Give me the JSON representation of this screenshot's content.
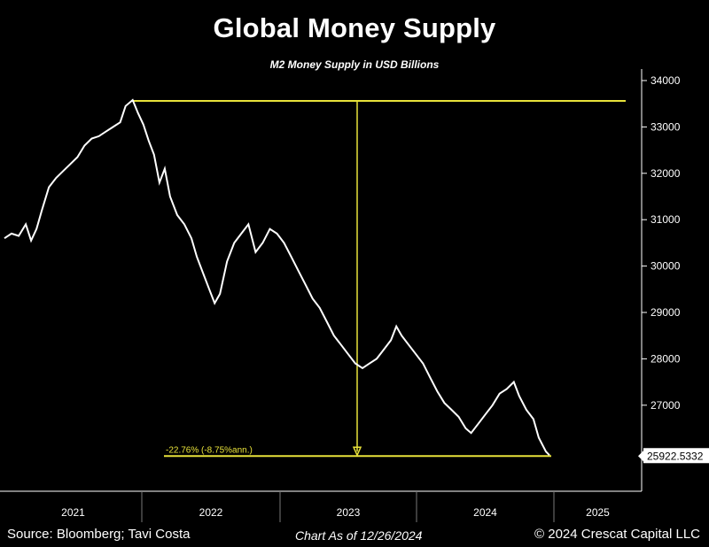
{
  "header": {
    "title": "Global Money Supply",
    "subtitle": "M2 Money Supply in USD Billions"
  },
  "footer": {
    "source": "Source: Bloomberg; Tavi Costa",
    "asof": "Chart As of 12/26/2024",
    "copyright": "© 2024 Crescat Capital LLC"
  },
  "annotation": {
    "change_label": "-22.76% (-8.75%ann.)",
    "last_value": "25922.5332"
  },
  "colors": {
    "line": "#ffffff",
    "annotation": "#e8e23a",
    "background": "#000000"
  },
  "chart_data": {
    "type": "line",
    "title": "Global Money Supply",
    "subtitle": "M2 Money Supply in USD Billions",
    "ylim": [
      24500,
      34300
    ],
    "yticks": [
      27000,
      28000,
      29000,
      30000,
      31000,
      32000,
      33000,
      34000
    ],
    "x_categories": [
      "2021",
      "2022",
      "2023",
      "2024",
      "2025"
    ],
    "xlim": [
      2020.98,
      2025.62
    ],
    "series": [
      {
        "values": [
          [
            2020.98,
            30600
          ],
          [
            2021.02,
            30700
          ],
          [
            2021.06,
            30650
          ],
          [
            2021.1,
            30900
          ],
          [
            2021.13,
            30550
          ],
          [
            2021.16,
            30800
          ],
          [
            2021.19,
            31200
          ],
          [
            2021.23,
            31700
          ],
          [
            2021.27,
            31900
          ],
          [
            2021.31,
            32050
          ],
          [
            2021.35,
            32200
          ],
          [
            2021.39,
            32350
          ],
          [
            2021.43,
            32600
          ],
          [
            2021.47,
            32750
          ],
          [
            2021.51,
            32800
          ],
          [
            2021.55,
            32900
          ],
          [
            2021.59,
            33000
          ],
          [
            2021.63,
            33100
          ],
          [
            2021.66,
            33450
          ],
          [
            2021.7,
            33580
          ],
          [
            2021.73,
            33300
          ],
          [
            2021.76,
            33050
          ],
          [
            2021.79,
            32700
          ],
          [
            2021.82,
            32400
          ],
          [
            2021.85,
            31800
          ],
          [
            2021.88,
            32100
          ],
          [
            2021.91,
            31500
          ],
          [
            2021.95,
            31100
          ],
          [
            2021.99,
            30900
          ],
          [
            2022.03,
            30600
          ],
          [
            2022.06,
            30200
          ],
          [
            2022.1,
            29800
          ],
          [
            2022.13,
            29500
          ],
          [
            2022.16,
            29200
          ],
          [
            2022.19,
            29400
          ],
          [
            2022.23,
            30100
          ],
          [
            2022.27,
            30500
          ],
          [
            2022.31,
            30700
          ],
          [
            2022.35,
            30900
          ],
          [
            2022.39,
            30300
          ],
          [
            2022.43,
            30500
          ],
          [
            2022.47,
            30800
          ],
          [
            2022.51,
            30700
          ],
          [
            2022.55,
            30500
          ],
          [
            2022.59,
            30200
          ],
          [
            2022.63,
            29900
          ],
          [
            2022.67,
            29600
          ],
          [
            2022.71,
            29300
          ],
          [
            2022.75,
            29100
          ],
          [
            2022.79,
            28800
          ],
          [
            2022.83,
            28500
          ],
          [
            2022.87,
            28300
          ],
          [
            2022.91,
            28100
          ],
          [
            2022.95,
            27900
          ],
          [
            2022.99,
            27800
          ],
          [
            2023.03,
            27900
          ],
          [
            2023.07,
            28000
          ],
          [
            2023.11,
            28200
          ],
          [
            2023.15,
            28400
          ],
          [
            2023.18,
            28700
          ],
          [
            2023.21,
            28500
          ],
          [
            2023.25,
            28300
          ],
          [
            2023.29,
            28100
          ],
          [
            2023.33,
            27900
          ],
          [
            2023.37,
            27600
          ],
          [
            2023.41,
            27300
          ],
          [
            2023.45,
            27050
          ],
          [
            2023.49,
            26900
          ],
          [
            2023.53,
            26750
          ],
          [
            2023.57,
            26500
          ],
          [
            2023.6,
            26400
          ],
          [
            2023.64,
            26600
          ],
          [
            2023.68,
            26800
          ],
          [
            2023.72,
            27000
          ],
          [
            2023.76,
            27250
          ],
          [
            2023.8,
            27350
          ],
          [
            2023.84,
            27500
          ],
          [
            2023.87,
            27200
          ],
          [
            2023.91,
            26900
          ],
          [
            2023.95,
            26700
          ],
          [
            2023.98,
            26300
          ],
          [
            2024.02,
            26000
          ],
          [
            2024.04,
            25922.5332
          ]
        ]
      }
    ],
    "peak": {
      "x": 2021.7,
      "y": 33580
    },
    "last": {
      "x": 2024.04,
      "y": 25922.5332
    }
  }
}
